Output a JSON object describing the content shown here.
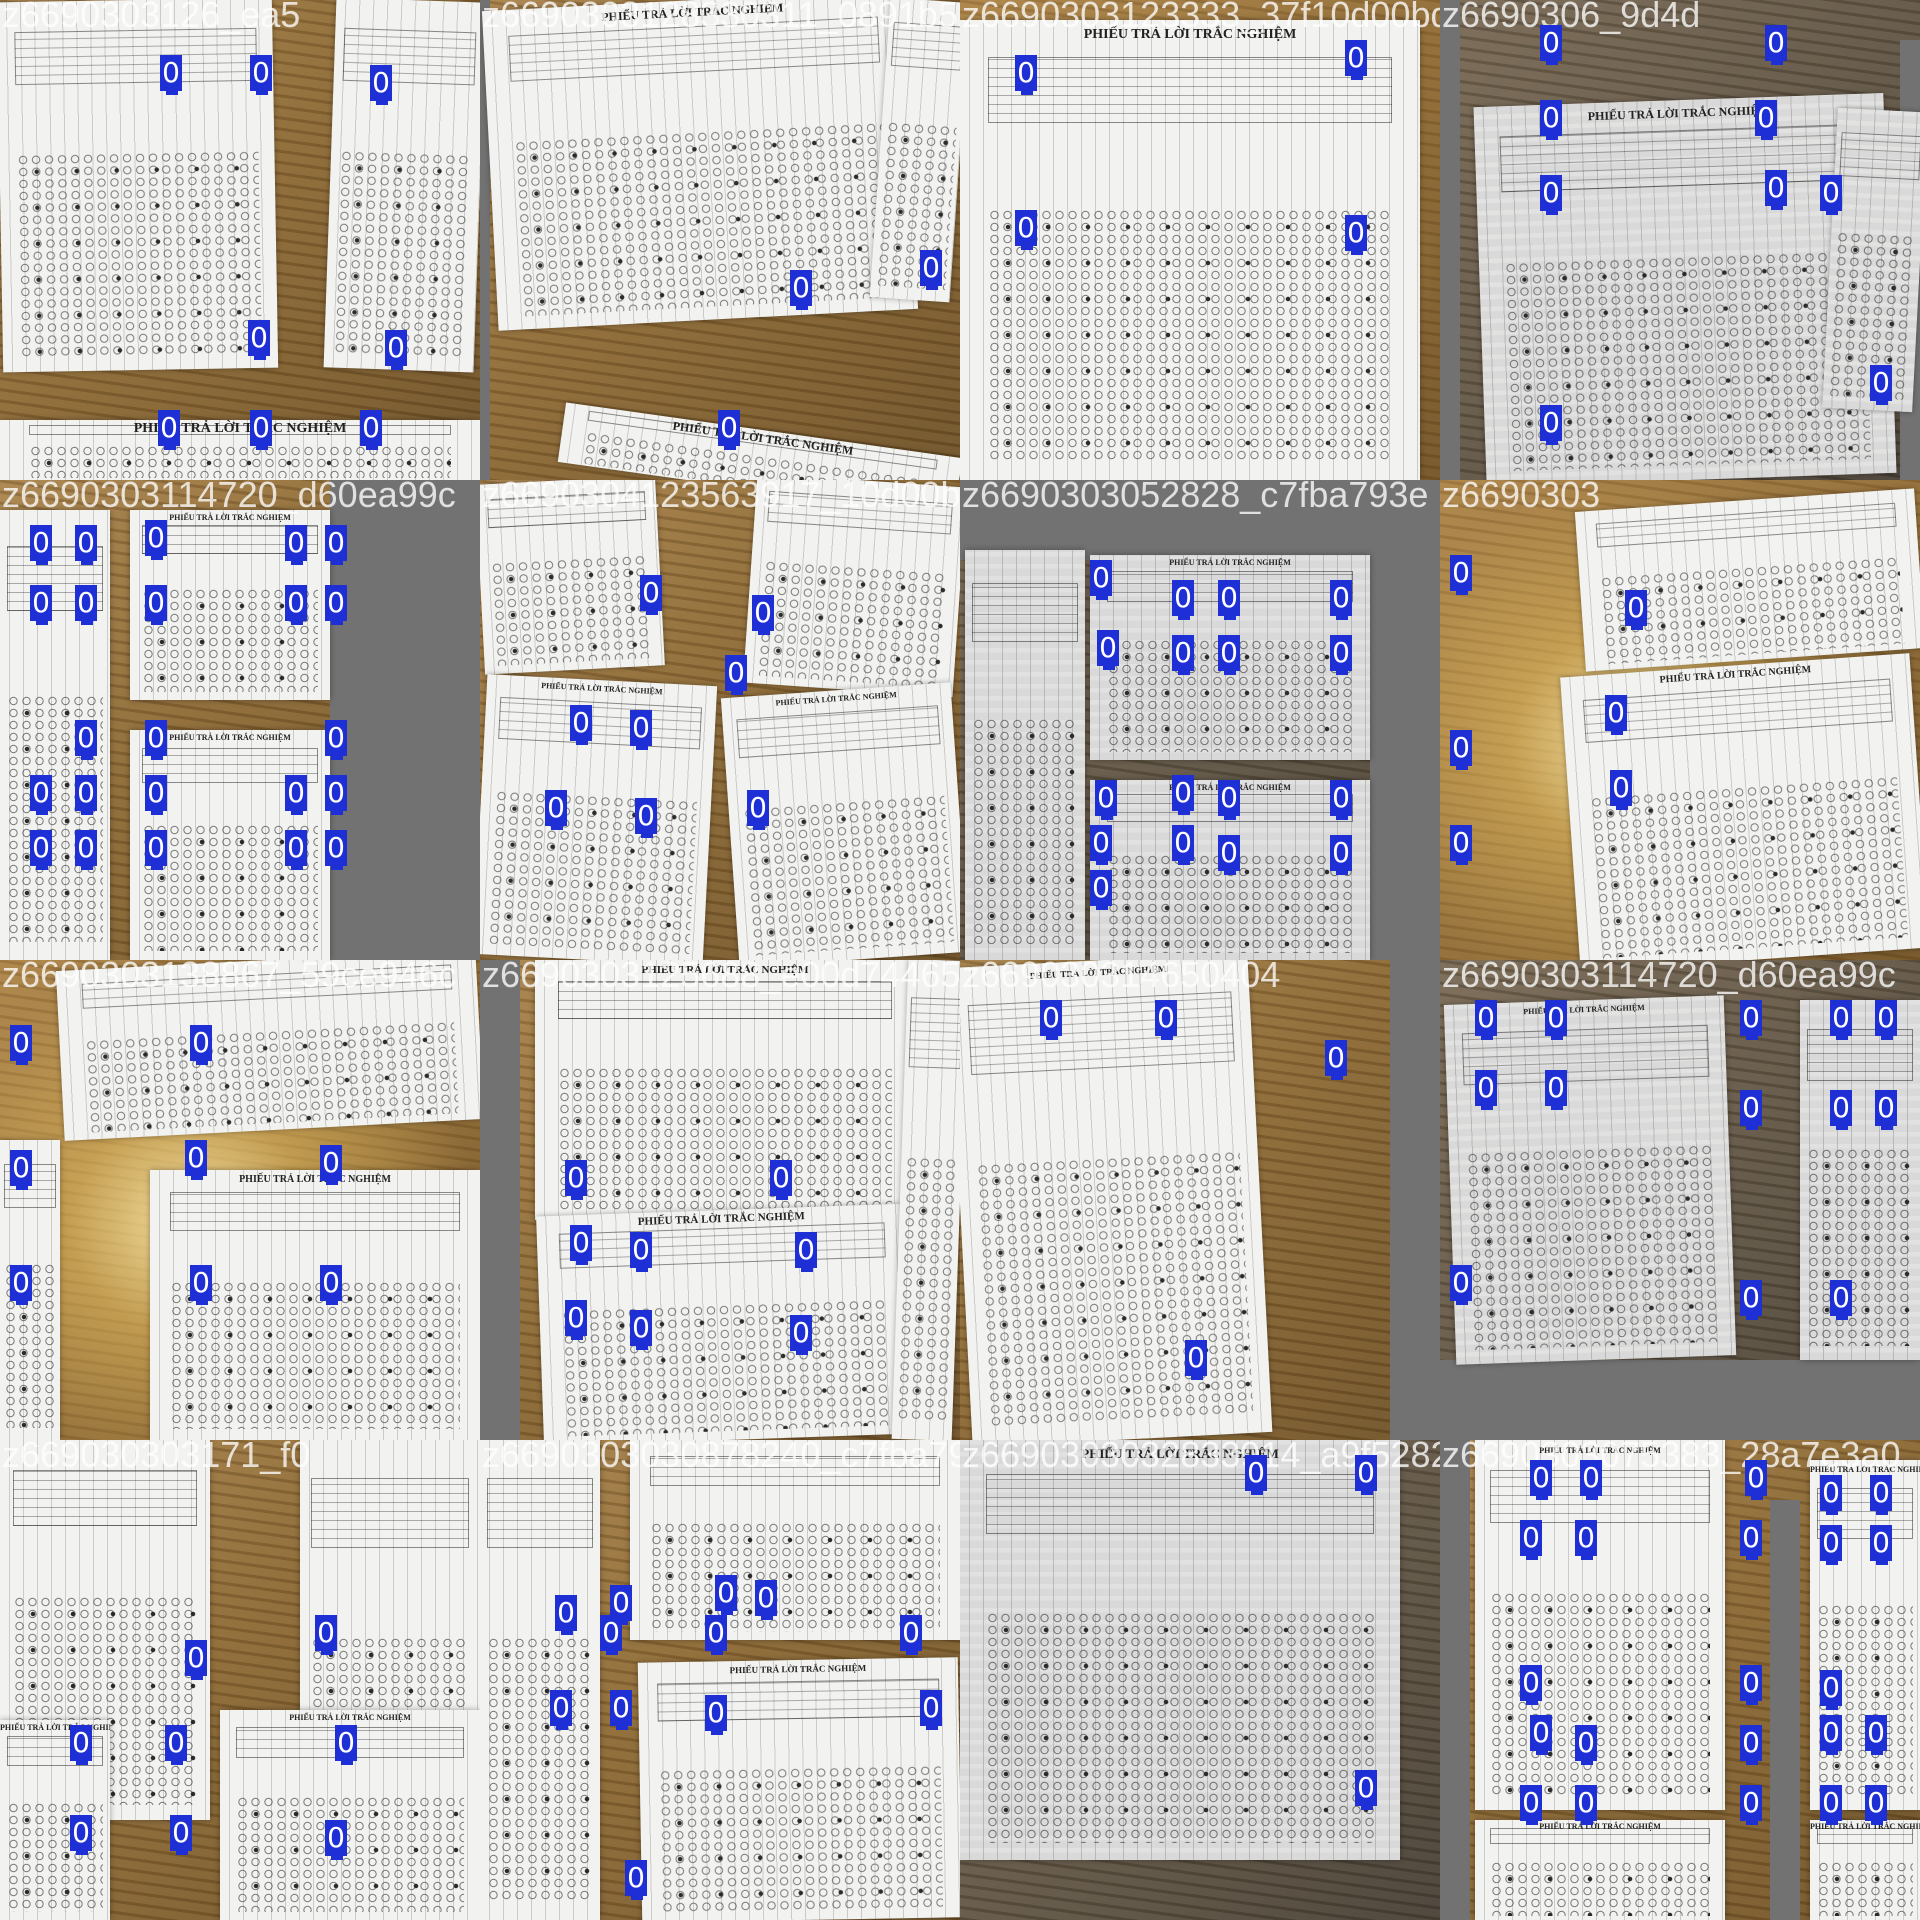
{
  "mosaic": {
    "detection_label": "0",
    "box_color": "#1f2fd6",
    "sheet_header": "PHIẾU TRẢ LỜI TRẮC NGHIỆM",
    "tiles": [
      {
        "label": "z6690303126_ea5",
        "tone": "plain"
      },
      {
        "label": "z6690303128330311_0891b528",
        "tone": "plain"
      },
      {
        "label": "z6690303123333_37f10d00bd",
        "tone": "bright"
      },
      {
        "label": "z6690306_9d4d",
        "tone": "dark"
      },
      {
        "label": "z6690303114720_d60ea99c",
        "tone": "plain"
      },
      {
        "label": "z6690304123563917_10d00bd",
        "tone": "plain"
      },
      {
        "label": "z6690303052828_c7fba793e",
        "tone": "dark"
      },
      {
        "label": "z6690303",
        "tone": "bright"
      },
      {
        "label": "z6690303138867_59ce946c",
        "tone": "bright"
      },
      {
        "label": "z6690303125688_e00d74465",
        "tone": "plain"
      },
      {
        "label": "z669030314650404",
        "tone": "plain"
      },
      {
        "label": "z6690303114720_d60ea99c",
        "tone": "dark"
      },
      {
        "label": "z669030303171_f0",
        "tone": "plain"
      },
      {
        "label": "z6690303030878240_c7fba79",
        "tone": "plain"
      },
      {
        "label": "z6690303032833914_a9f5282",
        "tone": "dark"
      },
      {
        "label": "z6690303075383_28a7e3a0",
        "tone": "plain"
      }
    ]
  }
}
